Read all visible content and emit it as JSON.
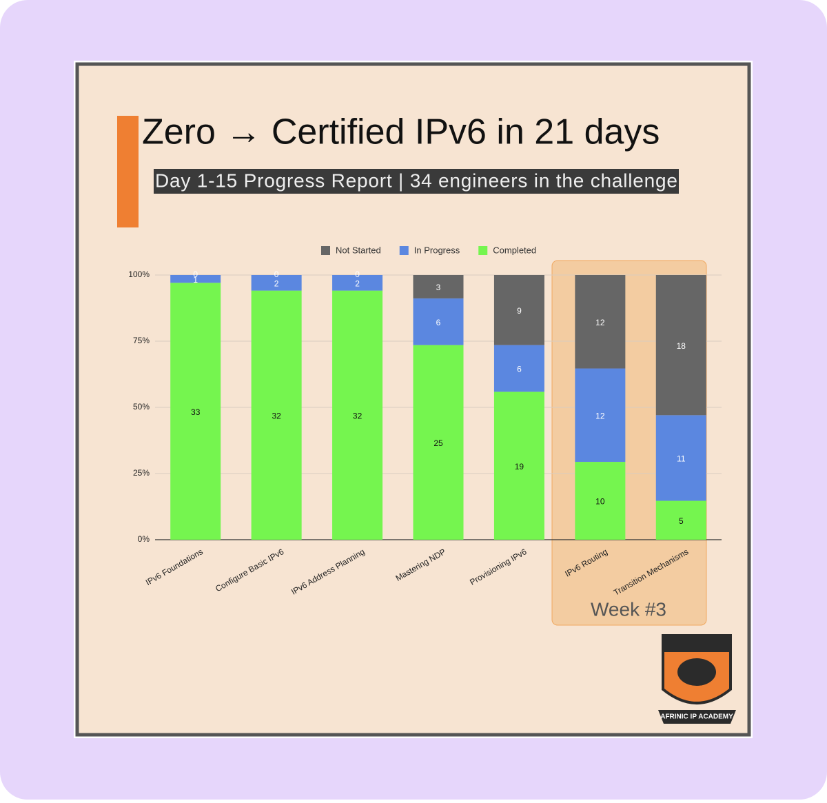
{
  "chart_data": {
    "type": "stacked_bar",
    "title": "Zero → Certified IPv6 in 21 days",
    "subtitle": "Day 1-15 Progress Report | 34 engineers in the challenge",
    "categories": [
      "IPv6 Foundations",
      "Configure Basic IPv6",
      "IPv6 Address Planning",
      "Mastering NDP",
      "Provisioning IPv6",
      "IPv6 Routing",
      "Transition Mechanisms"
    ],
    "series": [
      {
        "name": "Completed",
        "color": "#75f54f",
        "values": [
          33,
          32,
          32,
          25,
          19,
          10,
          5
        ]
      },
      {
        "name": "In Progress",
        "color": "#5b87e0",
        "values": [
          1,
          2,
          2,
          6,
          6,
          12,
          11
        ]
      },
      {
        "name": "Not Started",
        "color": "#666666",
        "values": [
          0,
          0,
          0,
          3,
          9,
          12,
          18
        ]
      }
    ],
    "stacking": "percent",
    "ylim": [
      0,
      100
    ],
    "yticks": [
      {
        "value": 0,
        "label": "0%"
      },
      {
        "value": 25,
        "label": "25%"
      },
      {
        "value": 50,
        "label": "50%"
      },
      {
        "value": 75,
        "label": "75%"
      },
      {
        "value": 100,
        "label": "100%"
      }
    ],
    "grid": true,
    "legend": "top",
    "annotation": "Week #3"
  },
  "logo_text": "AFRINIC IP ACADEMY"
}
